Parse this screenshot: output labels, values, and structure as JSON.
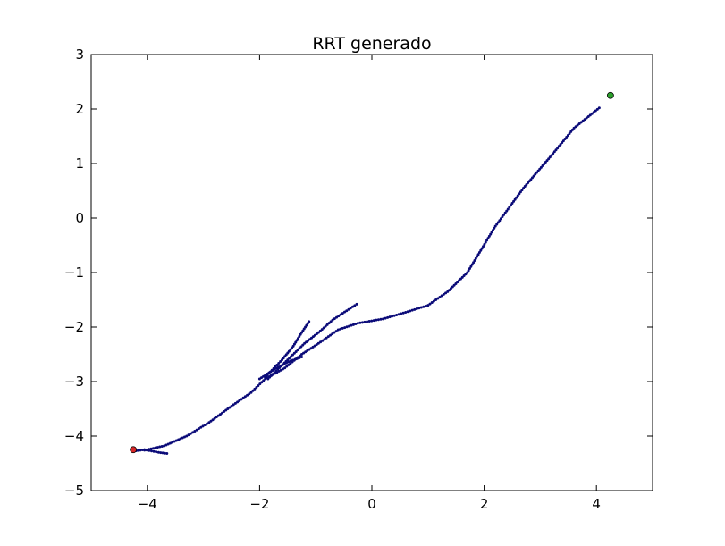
{
  "chart_data": {
    "type": "scatter",
    "title": "RRT generado",
    "xlabel": "",
    "ylabel": "",
    "xlim": [
      -5,
      5
    ],
    "ylim": [
      -5,
      3
    ],
    "xticks": [
      -4,
      -2,
      0,
      2,
      4
    ],
    "yticks": [
      -5,
      -4,
      -3,
      -2,
      -1,
      0,
      1,
      2,
      3
    ],
    "xtick_labels": [
      "−4",
      "−2",
      "0",
      "2",
      "4"
    ],
    "ytick_labels": [
      "−5",
      "−4",
      "−3",
      "−2",
      "−1",
      "0",
      "1",
      "2",
      "3"
    ],
    "grid": false,
    "colors": {
      "tree": "#0a0a78",
      "start": "#d62728",
      "goal": "#2ca02c",
      "axes": "#000000"
    },
    "branches": [
      {
        "points": [
          [
            -4.05,
            -4.26
          ],
          [
            -3.7,
            -4.18
          ],
          [
            -3.3,
            -4.0
          ],
          [
            -2.9,
            -3.75
          ],
          [
            -2.5,
            -3.45
          ],
          [
            -2.15,
            -3.2
          ],
          [
            -1.9,
            -2.95
          ],
          [
            -1.55,
            -2.75
          ],
          [
            -1.25,
            -2.5
          ],
          [
            -0.95,
            -2.3
          ],
          [
            -0.6,
            -2.05
          ],
          [
            -0.25,
            -1.93
          ],
          [
            0.2,
            -1.85
          ],
          [
            0.6,
            -1.73
          ],
          [
            1.0,
            -1.6
          ],
          [
            1.35,
            -1.35
          ],
          [
            1.7,
            -1.0
          ],
          [
            2.2,
            -0.15
          ],
          [
            2.7,
            0.55
          ],
          [
            3.2,
            1.15
          ],
          [
            3.6,
            1.65
          ],
          [
            4.05,
            2.02
          ]
        ]
      },
      {
        "points": [
          [
            -1.85,
            -2.95
          ],
          [
            -1.5,
            -2.6
          ],
          [
            -1.2,
            -2.3
          ],
          [
            -0.95,
            -2.1
          ],
          [
            -0.7,
            -1.87
          ],
          [
            -0.45,
            -1.7
          ],
          [
            -0.27,
            -1.58
          ]
        ]
      },
      {
        "points": [
          [
            -1.9,
            -2.92
          ],
          [
            -1.6,
            -2.6
          ],
          [
            -1.4,
            -2.35
          ],
          [
            -1.25,
            -2.1
          ],
          [
            -1.12,
            -1.9
          ]
        ]
      },
      {
        "points": [
          [
            -2.0,
            -2.95
          ],
          [
            -1.7,
            -2.75
          ],
          [
            -1.45,
            -2.62
          ],
          [
            -1.25,
            -2.55
          ]
        ]
      },
      {
        "points": [
          [
            -4.05,
            -4.25
          ],
          [
            -3.8,
            -4.3
          ],
          [
            -3.65,
            -4.32
          ]
        ]
      },
      {
        "points": [
          [
            -4.05,
            -4.25
          ],
          [
            -4.2,
            -4.27
          ]
        ]
      }
    ],
    "start": {
      "x": -4.25,
      "y": -4.25
    },
    "goal": {
      "x": 4.25,
      "y": 2.25
    }
  }
}
